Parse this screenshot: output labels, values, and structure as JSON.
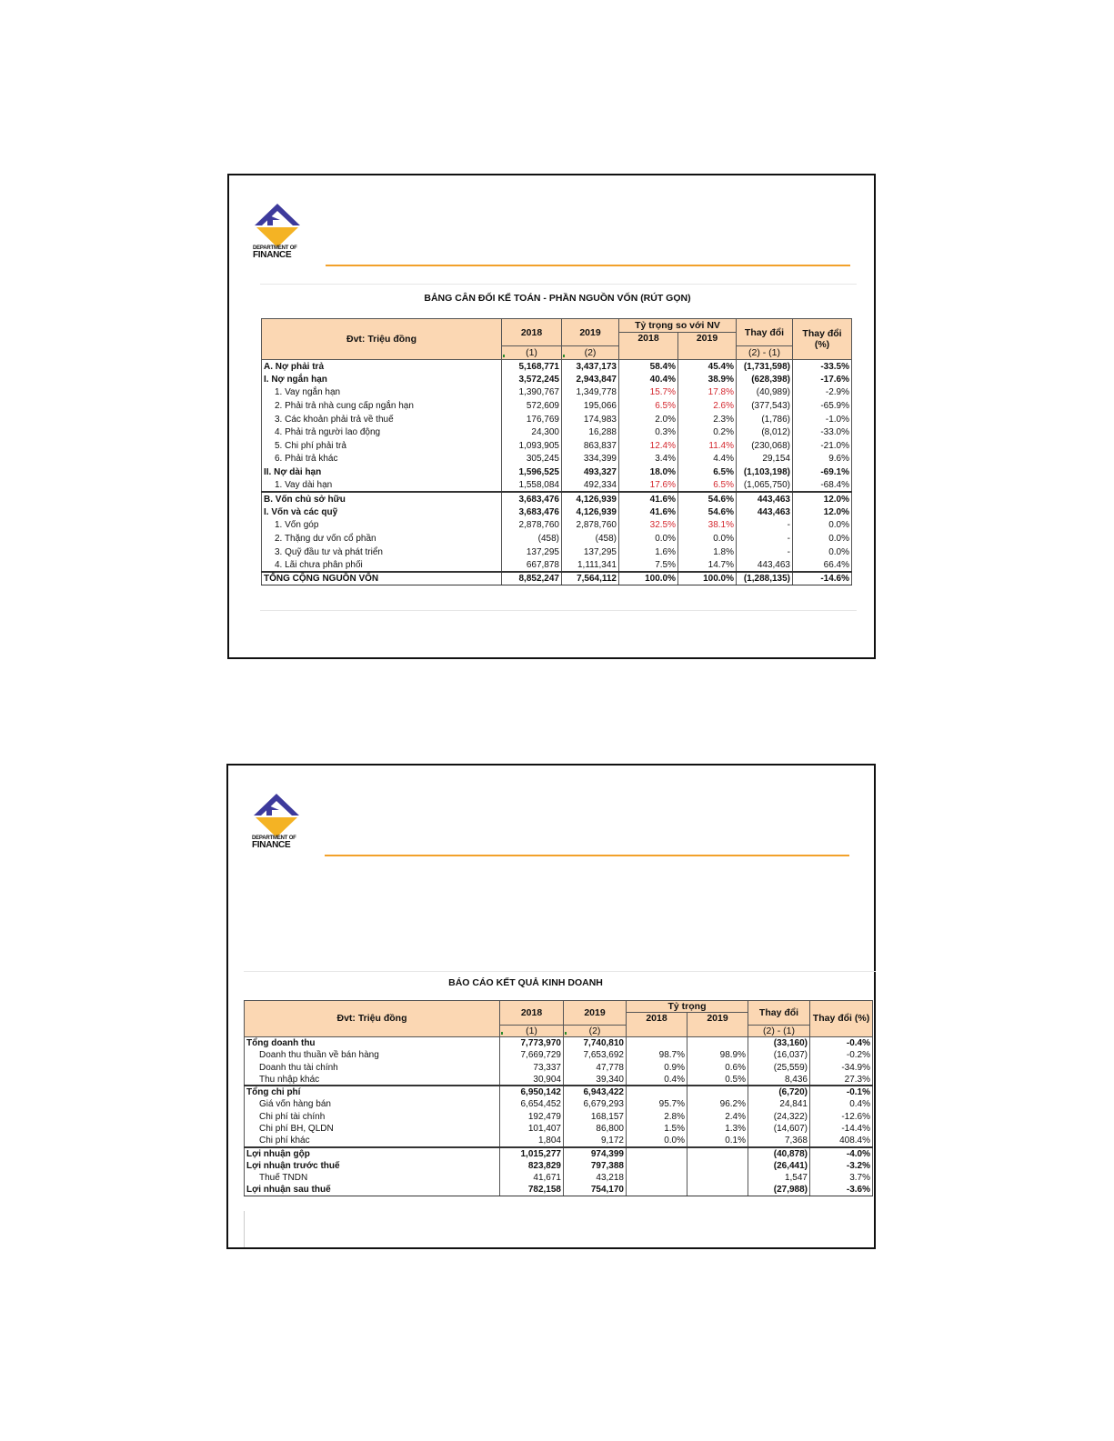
{
  "logo": {
    "line1": "DEPARTMENT OF",
    "line2": "FINANCE"
  },
  "colors": {
    "accent_rule": "#f2a12a",
    "header_fill": "#fbd7b3",
    "highlight_red": "#d4272e",
    "logo_blue": "#3d3a9c",
    "logo_gold": "#f4b324"
  },
  "balance_sheet": {
    "title": "BẢNG CÂN ĐỐI KẾ TOÁN - PHẦN NGUỒN VỐN (RÚT GỌN)",
    "header": {
      "unit": "Đvt: Triệu đồng",
      "y2018": "2018",
      "y2019": "2019",
      "share_group": "Tỷ trọng so với NV",
      "share2018": "2018",
      "share2019": "2019",
      "change": "Thay đổi",
      "change_pct": "Thay đổi (%)",
      "ref1": "(1)",
      "ref2": "(2)",
      "ref_change": "(2) - (1)"
    },
    "rows": [
      {
        "label": "A. Nợ phải trả",
        "bold": true,
        "values": [
          "5,168,771",
          "3,437,173",
          "58.4%",
          "45.4%",
          "(1,731,598)",
          "-33.5%"
        ]
      },
      {
        "label": "I. Nợ ngắn hạn",
        "bold": true,
        "values": [
          "3,572,245",
          "2,943,847",
          "40.4%",
          "38.9%",
          "(628,398)",
          "-17.6%"
        ]
      },
      {
        "label": "1. Vay ngắn hạn",
        "indent": true,
        "red": true,
        "values": [
          "1,390,767",
          "1,349,778",
          "15.7%",
          "17.8%",
          "(40,989)",
          "-2.9%"
        ]
      },
      {
        "label": "2. Phải trả nhà cung cấp ngắn hạn",
        "indent": true,
        "red": true,
        "values": [
          "572,609",
          "195,066",
          "6.5%",
          "2.6%",
          "(377,543)",
          "-65.9%"
        ]
      },
      {
        "label": "3. Các khoản phải trả về thuế",
        "indent": true,
        "values": [
          "176,769",
          "174,983",
          "2.0%",
          "2.3%",
          "(1,786)",
          "-1.0%"
        ]
      },
      {
        "label": "4. Phải trả người lao động",
        "indent": true,
        "values": [
          "24,300",
          "16,288",
          "0.3%",
          "0.2%",
          "(8,012)",
          "-33.0%"
        ]
      },
      {
        "label": "5. Chi phí phải trả",
        "indent": true,
        "red": true,
        "values": [
          "1,093,905",
          "863,837",
          "12.4%",
          "11.4%",
          "(230,068)",
          "-21.0%"
        ]
      },
      {
        "label": "6. Phải trả khác",
        "indent": true,
        "values": [
          "305,245",
          "334,399",
          "3.4%",
          "4.4%",
          "29,154",
          "9.6%"
        ]
      },
      {
        "label": "II. Nợ dài hạn",
        "bold": true,
        "values": [
          "1,596,525",
          "493,327",
          "18.0%",
          "6.5%",
          "(1,103,198)",
          "-69.1%"
        ]
      },
      {
        "label": "1. Vay dài hạn",
        "indent": true,
        "red": true,
        "values": [
          "1,558,084",
          "492,334",
          "17.6%",
          "6.5%",
          "(1,065,750)",
          "-68.4%"
        ]
      },
      {
        "label": "B. Vốn chủ sở hữu",
        "bold": true,
        "section": true,
        "values": [
          "3,683,476",
          "4,126,939",
          "41.6%",
          "54.6%",
          "443,463",
          "12.0%"
        ]
      },
      {
        "label": "I. Vốn và các quỹ",
        "bold": true,
        "values": [
          "3,683,476",
          "4,126,939",
          "41.6%",
          "54.6%",
          "443,463",
          "12.0%"
        ]
      },
      {
        "label": "1. Vốn góp",
        "indent": true,
        "red": true,
        "values": [
          "2,878,760",
          "2,878,760",
          "32.5%",
          "38.1%",
          "-",
          "0.0%"
        ]
      },
      {
        "label": "2. Thặng dư vốn cổ phần",
        "indent": true,
        "values": [
          "(458)",
          "(458)",
          "0.0%",
          "0.0%",
          "-",
          "0.0%"
        ]
      },
      {
        "label": "3. Quỹ đầu tư và phát triển",
        "indent": true,
        "values": [
          "137,295",
          "137,295",
          "1.6%",
          "1.8%",
          "-",
          "0.0%"
        ]
      },
      {
        "label": "4. Lãi chưa phân phối",
        "indent": true,
        "values": [
          "667,878",
          "1,111,341",
          "7.5%",
          "14.7%",
          "443,463",
          "66.4%"
        ]
      },
      {
        "label": "TỔNG CỘNG NGUỒN VỐN",
        "bold": true,
        "section": true,
        "total": true,
        "values": [
          "8,852,247",
          "7,564,112",
          "100.0%",
          "100.0%",
          "(1,288,135)",
          "-14.6%"
        ]
      }
    ]
  },
  "income_statement": {
    "title": "BÁO CÁO KẾT QUẢ KINH DOANH",
    "header": {
      "unit": "Đvt: Triệu đồng",
      "y2018": "2018",
      "y2019": "2019",
      "share_group": "Tỷ trọng",
      "share2018": "2018",
      "share2019": "2019",
      "change": "Thay đổi",
      "change_pct": "Thay đổi (%)",
      "ref1": "(1)",
      "ref2": "(2)",
      "ref_change": "(2) - (1)"
    },
    "rows": [
      {
        "label": "Tổng doanh thu",
        "bold": true,
        "values": [
          "7,773,970",
          "7,740,810",
          "",
          "",
          "(33,160)",
          "-0.4%"
        ]
      },
      {
        "label": "Doanh thu thuần về bán hàng",
        "indent": true,
        "values": [
          "7,669,729",
          "7,653,692",
          "98.7%",
          "98.9%",
          "(16,037)",
          "-0.2%"
        ]
      },
      {
        "label": "Doanh thu tài chính",
        "indent": true,
        "values": [
          "73,337",
          "47,778",
          "0.9%",
          "0.6%",
          "(25,559)",
          "-34.9%"
        ]
      },
      {
        "label": "Thu nhập khác",
        "indent": true,
        "values": [
          "30,904",
          "39,340",
          "0.4%",
          "0.5%",
          "8,436",
          "27.3%"
        ]
      },
      {
        "label": "Tổng chi phí",
        "bold": true,
        "section": true,
        "values": [
          "6,950,142",
          "6,943,422",
          "",
          "",
          "(6,720)",
          "-0.1%"
        ]
      },
      {
        "label": "Giá vốn hàng bán",
        "indent": true,
        "values": [
          "6,654,452",
          "6,679,293",
          "95.7%",
          "96.2%",
          "24,841",
          "0.4%"
        ]
      },
      {
        "label": "Chi phí tài chính",
        "indent": true,
        "values": [
          "192,479",
          "168,157",
          "2.8%",
          "2.4%",
          "(24,322)",
          "-12.6%"
        ]
      },
      {
        "label": "Chi phí BH, QLDN",
        "indent": true,
        "values": [
          "101,407",
          "86,800",
          "1.5%",
          "1.3%",
          "(14,607)",
          "-14.4%"
        ]
      },
      {
        "label": "Chi phí khác",
        "indent": true,
        "values": [
          "1,804",
          "9,172",
          "0.0%",
          "0.1%",
          "7,368",
          "408.4%"
        ]
      },
      {
        "label": "Lợi nhuận gộp",
        "bold": true,
        "section": true,
        "values": [
          "1,015,277",
          "974,399",
          "",
          "",
          "(40,878)",
          "-4.0%"
        ]
      },
      {
        "label": "Lợi nhuận trước thuế",
        "bold": true,
        "values": [
          "823,829",
          "797,388",
          "",
          "",
          "(26,441)",
          "-3.2%"
        ]
      },
      {
        "label": "Thuế TNDN",
        "indent": true,
        "values": [
          "41,671",
          "43,218",
          "",
          "",
          "1,547",
          "3.7%"
        ]
      },
      {
        "label": "Lợi nhuận sau thuế",
        "bold": true,
        "total": true,
        "values": [
          "782,158",
          "754,170",
          "",
          "",
          "(27,988)",
          "-3.6%"
        ]
      }
    ]
  }
}
